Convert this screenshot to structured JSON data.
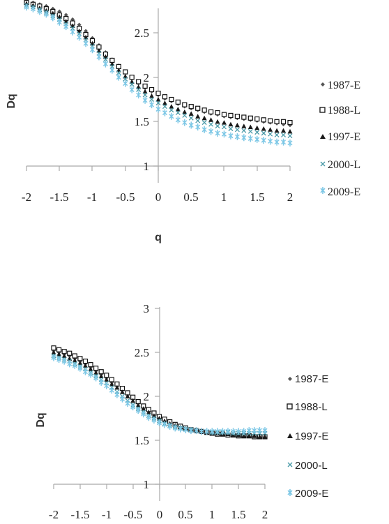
{
  "chart_data": [
    {
      "type": "scatter",
      "title": "",
      "xlabel": "q",
      "ylabel": "Dq",
      "xlim": [
        -2,
        2
      ],
      "ylim": [
        1,
        2.8
      ],
      "x_ticks": [
        "-2",
        "-1.5",
        "-1",
        "-0.5",
        "0",
        "0.5",
        "1",
        "1.5",
        "2"
      ],
      "y_ticks": [
        "1",
        "1.5",
        "2",
        "2.5"
      ],
      "grid": false,
      "legend_position": "right",
      "x": [
        -2,
        -1.9,
        -1.8,
        -1.7,
        -1.6,
        -1.5,
        -1.4,
        -1.3,
        -1.2,
        -1.1,
        -1,
        -0.9,
        -0.8,
        -0.7,
        -0.6,
        -0.5,
        -0.4,
        -0.3,
        -0.2,
        -0.1,
        0,
        0.1,
        0.2,
        0.3,
        0.4,
        0.5,
        0.6,
        0.7,
        0.8,
        0.9,
        1,
        1.1,
        1.2,
        1.3,
        1.4,
        1.5,
        1.6,
        1.7,
        1.8,
        1.9,
        2
      ],
      "series": [
        {
          "name": "1987-E",
          "marker": "diamond",
          "color": "#555555",
          "values": [
            2.86,
            2.84,
            2.82,
            2.8,
            2.77,
            2.74,
            2.7,
            2.65,
            2.59,
            2.52,
            2.44,
            2.36,
            2.28,
            2.2,
            2.13,
            2.06,
            1.99,
            1.93,
            1.88,
            1.84,
            1.8,
            1.76,
            1.73,
            1.7,
            1.67,
            1.65,
            1.63,
            1.61,
            1.59,
            1.58,
            1.56,
            1.55,
            1.54,
            1.53,
            1.52,
            1.51,
            1.5,
            1.49,
            1.48,
            1.47,
            1.46
          ]
        },
        {
          "name": "1988-L",
          "marker": "square-open",
          "color": "#111111",
          "values": [
            2.84,
            2.82,
            2.8,
            2.77,
            2.74,
            2.7,
            2.66,
            2.61,
            2.55,
            2.48,
            2.41,
            2.34,
            2.26,
            2.19,
            2.12,
            2.06,
            2.0,
            1.95,
            1.9,
            1.86,
            1.82,
            1.78,
            1.75,
            1.72,
            1.69,
            1.67,
            1.65,
            1.63,
            1.61,
            1.6,
            1.58,
            1.57,
            1.56,
            1.55,
            1.54,
            1.53,
            1.52,
            1.51,
            1.5,
            1.5,
            1.49
          ]
        },
        {
          "name": "1997-E",
          "marker": "triangle",
          "color": "#1a1a1a",
          "values": [
            2.83,
            2.81,
            2.78,
            2.75,
            2.72,
            2.68,
            2.63,
            2.58,
            2.52,
            2.45,
            2.38,
            2.3,
            2.23,
            2.15,
            2.08,
            2.01,
            1.95,
            1.89,
            1.84,
            1.79,
            1.75,
            1.71,
            1.67,
            1.64,
            1.61,
            1.59,
            1.56,
            1.54,
            1.52,
            1.5,
            1.49,
            1.47,
            1.46,
            1.45,
            1.44,
            1.43,
            1.42,
            1.41,
            1.4,
            1.4,
            1.39
          ]
        },
        {
          "name": "2000-L",
          "marker": "cross",
          "color": "#4a9aa8",
          "values": [
            2.81,
            2.79,
            2.76,
            2.73,
            2.69,
            2.65,
            2.6,
            2.55,
            2.49,
            2.42,
            2.35,
            2.27,
            2.2,
            2.12,
            2.05,
            1.98,
            1.92,
            1.86,
            1.8,
            1.75,
            1.71,
            1.67,
            1.63,
            1.6,
            1.57,
            1.54,
            1.51,
            1.49,
            1.47,
            1.45,
            1.44,
            1.42,
            1.41,
            1.4,
            1.39,
            1.38,
            1.37,
            1.36,
            1.35,
            1.35,
            1.34
          ]
        },
        {
          "name": "2009-E",
          "marker": "cross-bar",
          "color": "#7ec8e6",
          "values": [
            2.79,
            2.77,
            2.74,
            2.71,
            2.67,
            2.62,
            2.57,
            2.51,
            2.45,
            2.38,
            2.31,
            2.23,
            2.15,
            2.08,
            2.0,
            1.93,
            1.86,
            1.8,
            1.74,
            1.69,
            1.64,
            1.6,
            1.56,
            1.52,
            1.49,
            1.46,
            1.44,
            1.41,
            1.39,
            1.37,
            1.36,
            1.34,
            1.33,
            1.32,
            1.31,
            1.3,
            1.29,
            1.28,
            1.27,
            1.27,
            1.26
          ]
        }
      ]
    },
    {
      "type": "scatter",
      "title": "",
      "xlabel": "",
      "ylabel": "Dq",
      "xlim": [
        -2,
        2
      ],
      "ylim": [
        1,
        3
      ],
      "x_ticks": [
        "-2",
        "-1.5",
        "-1",
        "-0.5",
        "0",
        "0.5",
        "1",
        "1.5",
        "2"
      ],
      "y_ticks": [
        "1",
        "1.5",
        "2",
        "2.5",
        "3"
      ],
      "grid": false,
      "legend_position": "right",
      "x": [
        -2,
        -1.9,
        -1.8,
        -1.7,
        -1.6,
        -1.5,
        -1.4,
        -1.3,
        -1.2,
        -1.1,
        -1,
        -0.9,
        -0.8,
        -0.7,
        -0.6,
        -0.5,
        -0.4,
        -0.3,
        -0.2,
        -0.1,
        0,
        0.1,
        0.2,
        0.3,
        0.4,
        0.5,
        0.6,
        0.7,
        0.8,
        0.9,
        1,
        1.1,
        1.2,
        1.3,
        1.4,
        1.5,
        1.6,
        1.7,
        1.8,
        1.9,
        2
      ],
      "series": [
        {
          "name": "1987-E",
          "marker": "diamond",
          "color": "#555555",
          "values": [
            2.52,
            2.5,
            2.48,
            2.46,
            2.43,
            2.4,
            2.37,
            2.33,
            2.29,
            2.25,
            2.21,
            2.16,
            2.12,
            2.07,
            2.02,
            1.97,
            1.92,
            1.87,
            1.83,
            1.79,
            1.76,
            1.73,
            1.7,
            1.68,
            1.66,
            1.64,
            1.63,
            1.62,
            1.61,
            1.6,
            1.59,
            1.59,
            1.58,
            1.58,
            1.57,
            1.57,
            1.57,
            1.56,
            1.56,
            1.56,
            1.56
          ]
        },
        {
          "name": "1988-L",
          "marker": "square-open",
          "color": "#111111",
          "values": [
            2.55,
            2.53,
            2.51,
            2.49,
            2.46,
            2.43,
            2.4,
            2.36,
            2.32,
            2.28,
            2.24,
            2.19,
            2.14,
            2.09,
            2.04,
            1.99,
            1.94,
            1.89,
            1.85,
            1.81,
            1.77,
            1.74,
            1.71,
            1.68,
            1.66,
            1.64,
            1.62,
            1.61,
            1.6,
            1.59,
            1.58,
            1.57,
            1.57,
            1.56,
            1.56,
            1.55,
            1.55,
            1.55,
            1.54,
            1.54,
            1.54
          ]
        },
        {
          "name": "1997-E",
          "marker": "triangle",
          "color": "#1a1a1a",
          "values": [
            2.5,
            2.48,
            2.46,
            2.43,
            2.41,
            2.38,
            2.35,
            2.31,
            2.27,
            2.23,
            2.19,
            2.14,
            2.1,
            2.05,
            2.0,
            1.95,
            1.9,
            1.86,
            1.82,
            1.78,
            1.75,
            1.72,
            1.69,
            1.67,
            1.65,
            1.63,
            1.62,
            1.61,
            1.6,
            1.59,
            1.58,
            1.58,
            1.57,
            1.57,
            1.56,
            1.56,
            1.55,
            1.55,
            1.55,
            1.54,
            1.54
          ]
        },
        {
          "name": "2000-L",
          "marker": "cross",
          "color": "#4a9aa8",
          "values": [
            2.46,
            2.44,
            2.42,
            2.4,
            2.37,
            2.34,
            2.31,
            2.27,
            2.23,
            2.19,
            2.15,
            2.1,
            2.05,
            2.0,
            1.95,
            1.9,
            1.86,
            1.82,
            1.78,
            1.75,
            1.72,
            1.69,
            1.67,
            1.65,
            1.64,
            1.63,
            1.62,
            1.61,
            1.6,
            1.6,
            1.59,
            1.59,
            1.59,
            1.59,
            1.58,
            1.58,
            1.58,
            1.58,
            1.58,
            1.58,
            1.58
          ]
        },
        {
          "name": "2009-E",
          "marker": "cross-bar",
          "color": "#7ec8e6",
          "values": [
            2.44,
            2.42,
            2.4,
            2.37,
            2.35,
            2.32,
            2.28,
            2.25,
            2.21,
            2.16,
            2.12,
            2.07,
            2.02,
            1.97,
            1.92,
            1.88,
            1.84,
            1.8,
            1.76,
            1.73,
            1.7,
            1.68,
            1.66,
            1.64,
            1.63,
            1.62,
            1.61,
            1.61,
            1.6,
            1.6,
            1.6,
            1.6,
            1.6,
            1.6,
            1.6,
            1.6,
            1.6,
            1.61,
            1.61,
            1.61,
            1.61
          ]
        }
      ]
    }
  ]
}
